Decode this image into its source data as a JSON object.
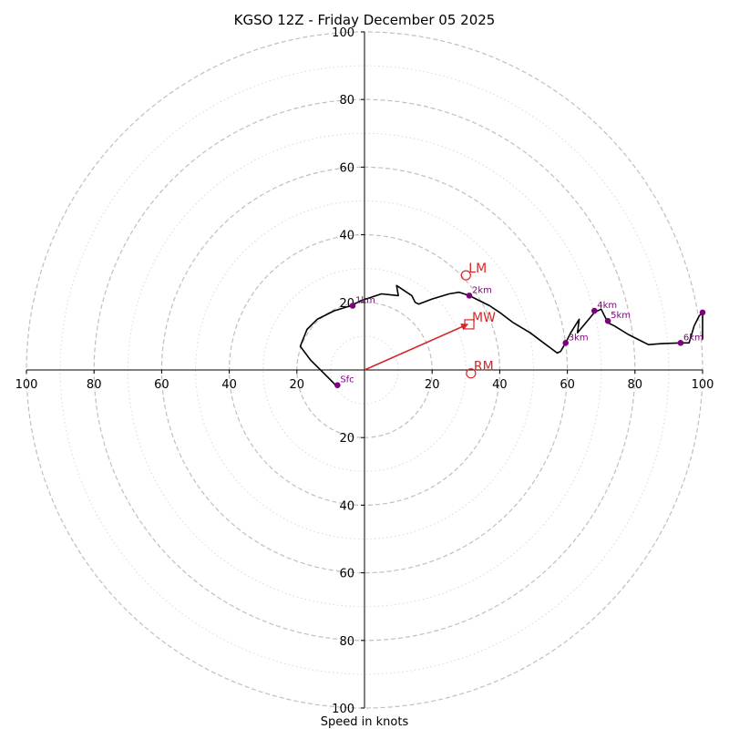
{
  "chart_data": {
    "type": "hodograph",
    "title": "KGSO 12Z - Friday December 05 2025",
    "xlabel": "Speed in knots",
    "xlim": [
      -100,
      100
    ],
    "ylim": [
      -100,
      100
    ],
    "ring_spacing_major": 20,
    "ring_spacing_minor": 10,
    "x_tick_labels": [
      "100",
      "80",
      "60",
      "40",
      "20",
      "20",
      "40",
      "60",
      "80",
      "100"
    ],
    "x_tick_values": [
      -100,
      -80,
      -60,
      -40,
      -20,
      20,
      40,
      60,
      80,
      100
    ],
    "y_tick_labels": [
      "100",
      "80",
      "60",
      "40",
      "20",
      "20",
      "40",
      "60",
      "80",
      "100"
    ],
    "y_tick_values": [
      100,
      80,
      60,
      40,
      20,
      -20,
      -40,
      -60,
      -80,
      -100
    ],
    "trace": {
      "color": "#000000",
      "points": [
        [
          -8,
          -5
        ],
        [
          -12,
          -1
        ],
        [
          -16,
          3
        ],
        [
          -19,
          7
        ],
        [
          -17,
          12
        ],
        [
          -14,
          15
        ],
        [
          -9,
          17.5
        ],
        [
          -4,
          19
        ],
        [
          -1,
          20.5
        ],
        [
          5,
          22.5
        ],
        [
          10,
          22
        ],
        [
          9.5,
          25
        ],
        [
          14,
          22
        ],
        [
          15,
          20
        ],
        [
          16,
          19.5
        ],
        [
          20,
          21
        ],
        [
          25,
          22.5
        ],
        [
          28,
          23
        ],
        [
          31,
          22
        ],
        [
          33,
          21
        ],
        [
          37,
          19
        ],
        [
          40,
          17
        ],
        [
          44,
          14
        ],
        [
          49,
          11
        ],
        [
          53,
          8
        ],
        [
          57,
          5
        ],
        [
          58,
          5.5
        ],
        [
          59.5,
          8
        ],
        [
          61,
          11
        ],
        [
          63.5,
          15
        ],
        [
          63,
          11
        ],
        [
          65.5,
          14
        ],
        [
          68,
          17
        ],
        [
          70,
          18
        ],
        [
          72,
          14
        ],
        [
          74,
          13
        ],
        [
          78,
          10.5
        ],
        [
          82,
          8.5
        ],
        [
          84,
          7.5
        ],
        [
          88,
          7.8
        ],
        [
          93.5,
          8
        ],
        [
          96,
          8
        ],
        [
          97.5,
          13
        ],
        [
          99,
          16
        ],
        [
          100,
          17
        ],
        [
          100,
          9
        ]
      ]
    },
    "height_markers": [
      {
        "label": "Sfc",
        "u": -8,
        "v": -4.5
      },
      {
        "label": "1km",
        "u": -3.5,
        "v": 19
      },
      {
        "label": "2km",
        "u": 31,
        "v": 22
      },
      {
        "label": "3km",
        "u": 59.5,
        "v": 8
      },
      {
        "label": "4km",
        "u": 68,
        "v": 17.5
      },
      {
        "label": "5km",
        "u": 72,
        "v": 14.5
      },
      {
        "label": "6km",
        "u": 93.5,
        "v": 8
      },
      {
        "label": "",
        "u": 100,
        "v": 17
      }
    ],
    "motion_markers": [
      {
        "label": "LM",
        "u": 30,
        "v": 28,
        "shape": "circle"
      },
      {
        "label": "MW",
        "u": 31,
        "v": 13.5,
        "shape": "square"
      },
      {
        "label": "RM",
        "u": 31.5,
        "v": -1,
        "shape": "circle"
      }
    ],
    "mean_wind_vector": {
      "from": [
        0,
        0
      ],
      "to": [
        30.5,
        13.5
      ]
    },
    "colors": {
      "trace": "#000000",
      "height_marker": "#7d007d",
      "motion": "#d62728",
      "grid_major": "#bfbfbf",
      "grid_minor": "#d9d9d9"
    }
  }
}
